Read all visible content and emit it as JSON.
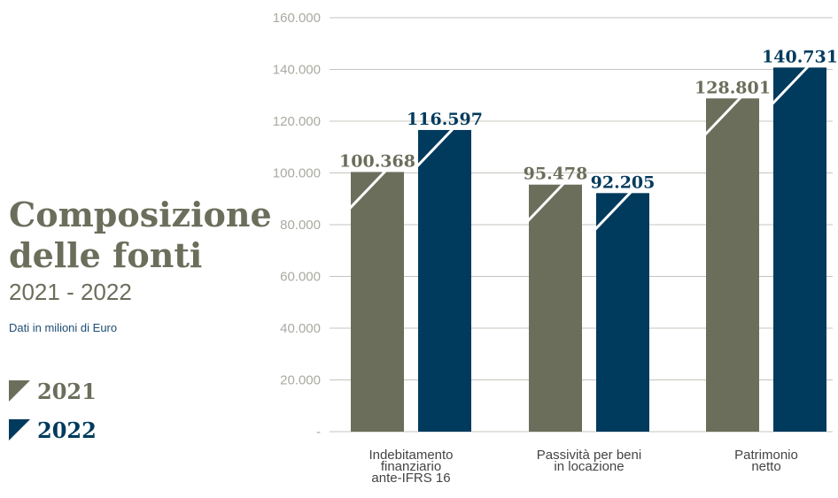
{
  "heading": {
    "title_line1": "Composizione",
    "title_line2": "delle fonti",
    "years": "2021 - 2022",
    "unit": "Dati in milioni di Euro"
  },
  "legend": [
    {
      "label": "2021",
      "color": "#6b6e5b"
    },
    {
      "label": "2022",
      "color": "#003a5d"
    }
  ],
  "chart_data": {
    "type": "bar",
    "categories": [
      [
        "Indebitamento",
        "finanziario",
        "ante-IFRS 16"
      ],
      [
        "Passività per beni",
        "in locazione"
      ],
      [
        "Patrimonio",
        "netto"
      ]
    ],
    "series": [
      {
        "name": "2021",
        "values": [
          100368,
          95478,
          128801
        ],
        "labels": [
          "100.368",
          "95.478",
          "128.801"
        ],
        "color": "#6b6e5b",
        "label_color": "#6b6e5b"
      },
      {
        "name": "2022",
        "values": [
          116597,
          92205,
          140731
        ],
        "labels": [
          "116.597",
          "92.205",
          "140.731"
        ],
        "color": "#003a5d",
        "label_color": "#003a5d"
      }
    ],
    "ylim": [
      0,
      160000
    ],
    "yticks": [
      0,
      20000,
      40000,
      60000,
      80000,
      100000,
      120000,
      140000,
      160000
    ],
    "ytick_labels": [
      "-",
      "20.000",
      "40.000",
      "60.000",
      "80.000",
      "100.000",
      "120.000",
      "140.000",
      "160.000"
    ],
    "grid": true,
    "legend_position": "left"
  }
}
